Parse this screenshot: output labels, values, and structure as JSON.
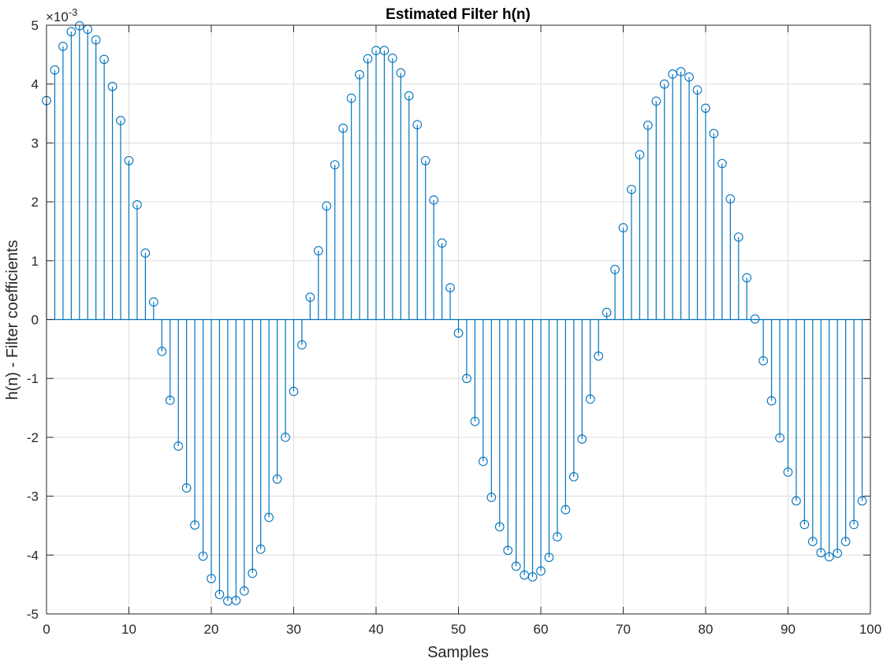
{
  "chart_data": {
    "type": "stem",
    "title": "Estimated Filter h(n)",
    "xlabel": "Samples",
    "ylabel": "h(n) - Filter coefficients",
    "xlim": [
      0,
      100
    ],
    "ylim": [
      -0.005,
      0.005
    ],
    "xticks": [
      "0",
      "10",
      "20",
      "30",
      "40",
      "50",
      "60",
      "70",
      "80",
      "90",
      "100"
    ],
    "yticks": [
      "-5",
      "-4",
      "-3",
      "-2",
      "-1",
      "0",
      "1",
      "2",
      "3",
      "4",
      "5"
    ],
    "y_multiplier_label": "×10",
    "y_multiplier_exp": "-3",
    "grid": true,
    "box": true,
    "series_color": "#0072BD",
    "x": [
      0,
      1,
      2,
      3,
      4,
      5,
      6,
      7,
      8,
      9,
      10,
      11,
      12,
      13,
      14,
      15,
      16,
      17,
      18,
      19,
      20,
      21,
      22,
      23,
      24,
      25,
      26,
      27,
      28,
      29,
      30,
      31,
      32,
      33,
      34,
      35,
      36,
      37,
      38,
      39,
      40,
      41,
      42,
      43,
      44,
      45,
      46,
      47,
      48,
      49,
      50,
      51,
      52,
      53,
      54,
      55,
      56,
      57,
      58,
      59,
      60,
      61,
      62,
      63,
      64,
      65,
      66,
      67,
      68,
      69,
      70,
      71,
      72,
      73,
      74,
      75,
      76,
      77,
      78,
      79,
      80,
      81,
      82,
      83,
      84,
      85,
      86,
      87,
      88,
      89,
      90,
      91,
      92,
      93,
      94,
      95,
      96,
      97,
      98,
      99
    ],
    "values": [
      0.00372,
      0.00424,
      0.00464,
      0.00489,
      0.00499,
      0.00493,
      0.00475,
      0.00442,
      0.00396,
      0.00338,
      0.0027,
      0.00195,
      0.00113,
      0.0003,
      -0.00054,
      -0.00137,
      -0.00215,
      -0.00286,
      -0.00349,
      -0.00402,
      -0.0044,
      -0.00467,
      -0.00478,
      -0.00477,
      -0.00461,
      -0.00431,
      -0.0039,
      -0.00336,
      -0.00271,
      -0.002,
      -0.00122,
      -0.00043,
      0.00038,
      0.00117,
      0.00193,
      0.00263,
      0.00325,
      0.00376,
      0.00416,
      0.00443,
      0.00457,
      0.00457,
      0.00444,
      0.00419,
      0.0038,
      0.00331,
      0.0027,
      0.00203,
      0.0013,
      0.00054,
      -0.00023,
      -0.001,
      -0.00173,
      -0.00241,
      -0.00302,
      -0.00352,
      -0.00392,
      -0.00419,
      -0.00434,
      -0.00437,
      -0.00427,
      -0.00404,
      -0.00369,
      -0.00323,
      -0.00267,
      -0.00203,
      -0.00135,
      -0.00062,
      0.00012,
      0.00085,
      0.00156,
      0.00221,
      0.0028,
      0.0033,
      0.00371,
      0.004,
      0.00417,
      0.00421,
      0.00412,
      0.0039,
      0.00359,
      0.00316,
      0.00265,
      0.00205,
      0.0014,
      0.00071,
      1e-05,
      -0.0007,
      -0.00138,
      -0.00201,
      -0.00259,
      -0.00308,
      -0.00348,
      -0.00377,
      -0.00396,
      -0.00403,
      -0.00397,
      -0.00377,
      -0.00348,
      -0.00308
    ]
  }
}
